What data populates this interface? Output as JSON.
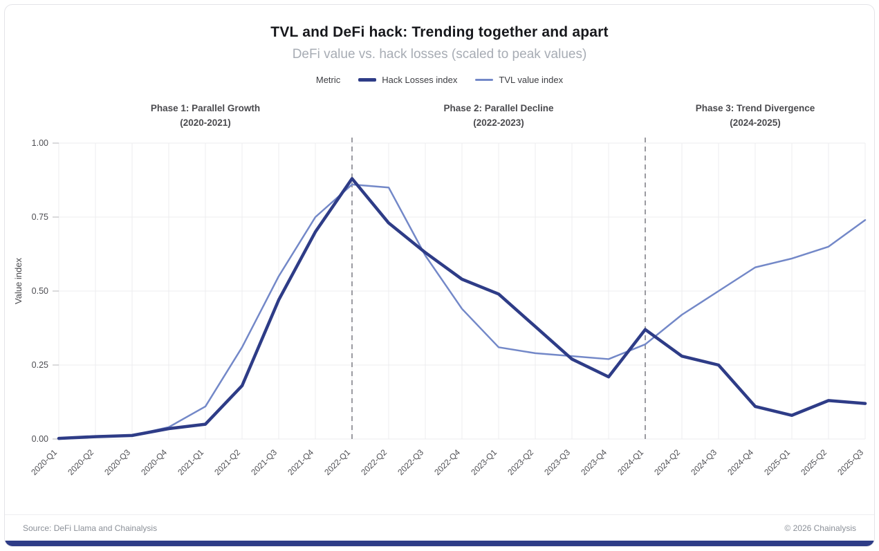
{
  "header": {
    "title": "TVL and DeFi hack: Trending together and apart",
    "subtitle": "DeFi value vs. hack losses (scaled to peak values)"
  },
  "legend": {
    "label": "Metric",
    "items": [
      {
        "label": "Hack Losses index",
        "color": "#2e3c87"
      },
      {
        "label": "TVL value index",
        "color": "#7388c8"
      }
    ]
  },
  "phases": [
    {
      "line1": "Phase 1: Parallel Growth",
      "line2": "(2020-2021)"
    },
    {
      "line1": "Phase 2: Parallel Decline",
      "line2": "(2022-2023)"
    },
    {
      "line1": "Phase 3: Trend Divergence",
      "line2": "(2024-2025)"
    }
  ],
  "chart_data": {
    "type": "line",
    "title": "TVL and DeFi hack: Trending together and apart",
    "subtitle": "DeFi value vs. hack losses (scaled to peak values)",
    "ylabel": "Value index",
    "xlabel": "",
    "ylim": [
      0,
      1.0
    ],
    "yticks": [
      0.0,
      0.25,
      0.5,
      0.75,
      1.0
    ],
    "grid": true,
    "legend_position": "top",
    "categories": [
      "2020-Q1",
      "2020-Q2",
      "2020-Q3",
      "2020-Q4",
      "2021-Q1",
      "2021-Q2",
      "2021-Q3",
      "2021-Q4",
      "2022-Q1",
      "2022-Q2",
      "2022-Q3",
      "2022-Q4",
      "2023-Q1",
      "2023-Q2",
      "2023-Q3",
      "2023-Q4",
      "2024-Q1",
      "2024-Q2",
      "2024-Q3",
      "2024-Q4",
      "2025-Q1",
      "2025-Q2",
      "2025-Q3"
    ],
    "series": [
      {
        "name": "Hack Losses index",
        "color": "#2e3c87",
        "width": 4.5,
        "values": [
          0.002,
          0.008,
          0.012,
          0.035,
          0.05,
          0.18,
          0.47,
          0.7,
          0.88,
          0.73,
          0.63,
          0.54,
          0.49,
          0.38,
          0.27,
          0.21,
          0.37,
          0.28,
          0.25,
          0.11,
          0.08,
          0.13,
          0.12
        ]
      },
      {
        "name": "TVL value index",
        "color": "#7388c8",
        "width": 2.5,
        "values": [
          0.0,
          0.01,
          0.012,
          0.04,
          0.11,
          0.31,
          0.55,
          0.75,
          0.86,
          0.85,
          0.62,
          0.44,
          0.31,
          0.29,
          0.28,
          0.27,
          0.32,
          0.42,
          0.5,
          0.58,
          0.61,
          0.65,
          0.74
        ]
      }
    ],
    "dividers": [
      "2022-Q1",
      "2024-Q1"
    ],
    "divider_color": "#9a9aa0",
    "grid_color": "#ececef"
  },
  "footer": {
    "source": "Source: DeFi Llama and Chainalysis",
    "copyright": "© 2026 Chainalysis"
  }
}
